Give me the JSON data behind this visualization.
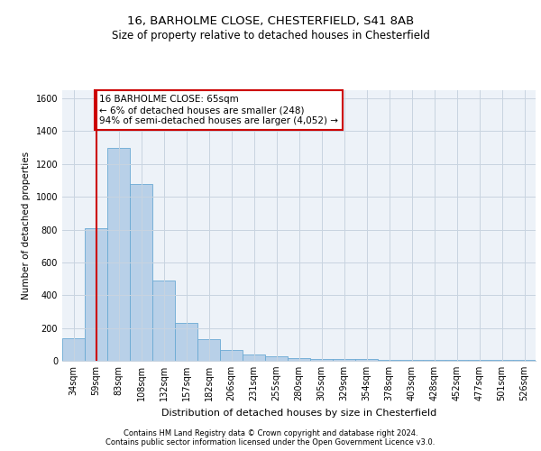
{
  "title1": "16, BARHOLME CLOSE, CHESTERFIELD, S41 8AB",
  "title2": "Size of property relative to detached houses in Chesterfield",
  "xlabel": "Distribution of detached houses by size in Chesterfield",
  "ylabel": "Number of detached properties",
  "footer1": "Contains HM Land Registry data © Crown copyright and database right 2024.",
  "footer2": "Contains public sector information licensed under the Open Government Licence v3.0.",
  "annotation_line1": "16 BARHOLME CLOSE: 65sqm",
  "annotation_line2": "← 6% of detached houses are smaller (248)",
  "annotation_line3": "94% of semi-detached houses are larger (4,052) →",
  "bar_color": "#b8d0e8",
  "bar_edge_color": "#6aaad4",
  "vline_color": "#cc0000",
  "vline_x": 1,
  "categories": [
    "34sqm",
    "59sqm",
    "83sqm",
    "108sqm",
    "132sqm",
    "157sqm",
    "182sqm",
    "206sqm",
    "231sqm",
    "255sqm",
    "280sqm",
    "305sqm",
    "329sqm",
    "354sqm",
    "378sqm",
    "403sqm",
    "428sqm",
    "452sqm",
    "477sqm",
    "501sqm",
    "526sqm"
  ],
  "values": [
    140,
    810,
    1300,
    1080,
    490,
    230,
    130,
    65,
    38,
    25,
    18,
    10,
    10,
    10,
    5,
    5,
    5,
    5,
    5,
    5,
    5
  ],
  "ylim": [
    0,
    1650
  ],
  "yticks": [
    0,
    200,
    400,
    600,
    800,
    1000,
    1200,
    1400,
    1600
  ],
  "grid_color": "#c8d4e0",
  "bg_color": "#edf2f8",
  "title1_fontsize": 9.5,
  "title2_fontsize": 8.5,
  "ylabel_fontsize": 7.5,
  "xlabel_fontsize": 8.0,
  "tick_fontsize": 7.0,
  "annot_fontsize": 7.5,
  "footer_fontsize": 6.0
}
